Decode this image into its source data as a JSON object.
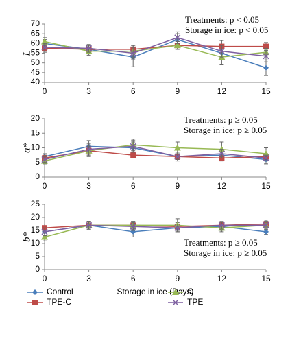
{
  "chart_data": [
    {
      "type": "line",
      "ylabel": "L",
      "x": [
        0,
        3,
        6,
        9,
        12,
        15
      ],
      "xlim": [
        0,
        15
      ],
      "xticks": [
        0,
        3,
        6,
        9,
        12,
        15
      ],
      "ylim": [
        40,
        70
      ],
      "yticks": [
        40,
        45,
        50,
        55,
        60,
        65,
        70
      ],
      "annotations": [
        "Treatments: p < 0.05",
        "Storage in ice: p < 0.05"
      ],
      "series": [
        {
          "name": "Control",
          "color": "#4a7ebb",
          "marker": "diamond",
          "values": [
            60,
            57,
            53,
            62,
            55,
            47.5
          ],
          "errors": [
            2,
            2,
            5,
            3,
            3,
            4
          ]
        },
        {
          "name": "TPE-C",
          "color": "#be4b48",
          "marker": "square",
          "values": [
            57.5,
            57,
            57,
            59,
            58.5,
            58.5
          ],
          "errors": [
            2,
            2,
            2,
            2,
            3,
            2
          ]
        },
        {
          "name": "C",
          "color": "#98b954",
          "marker": "triangle",
          "values": [
            61,
            56,
            56,
            59,
            53,
            55.5
          ],
          "errors": [
            2,
            2,
            3,
            2,
            4,
            2
          ]
        },
        {
          "name": "TPE",
          "color": "#7d5fa0",
          "marker": "x",
          "values": [
            58,
            57.5,
            55,
            63,
            56,
            53.5
          ],
          "errors": [
            2,
            2,
            3,
            3,
            3,
            3
          ]
        }
      ]
    },
    {
      "type": "line",
      "ylabel": "a*",
      "x": [
        0,
        3,
        6,
        9,
        12,
        15
      ],
      "xlim": [
        0,
        15
      ],
      "xticks": [
        0,
        3,
        6,
        9,
        12,
        15
      ],
      "ylim": [
        0,
        20
      ],
      "yticks": [
        0,
        5,
        10,
        15,
        20
      ],
      "annotations": [
        "Treatments: p ≥ 0.05",
        "Storage in ice: p ≥ 0.05"
      ],
      "series": [
        {
          "name": "Control",
          "color": "#4a7ebb",
          "marker": "diamond",
          "values": [
            7,
            10.5,
            10,
            7,
            7.5,
            6
          ],
          "errors": [
            1,
            2,
            2,
            1,
            1.5,
            1.5
          ]
        },
        {
          "name": "TPE-C",
          "color": "#be4b48",
          "marker": "square",
          "values": [
            6.5,
            9,
            7.5,
            7,
            6.5,
            7
          ],
          "errors": [
            1,
            1.5,
            1,
            1,
            1,
            1
          ]
        },
        {
          "name": "C",
          "color": "#98b954",
          "marker": "triangle",
          "values": [
            5.5,
            9,
            11,
            10,
            9.5,
            8
          ],
          "errors": [
            1,
            2,
            2,
            2,
            2.5,
            2
          ]
        },
        {
          "name": "TPE",
          "color": "#7d5fa0",
          "marker": "x",
          "values": [
            6,
            9.5,
            10.5,
            7,
            8,
            6.5
          ],
          "errors": [
            1,
            2,
            2,
            1.5,
            1.5,
            1
          ]
        }
      ]
    },
    {
      "type": "line",
      "ylabel": "b*",
      "xlabel": "Storage in ice (Days)",
      "x": [
        0,
        3,
        6,
        9,
        12,
        15
      ],
      "xlim": [
        0,
        15
      ],
      "xticks": [
        0,
        3,
        6,
        9,
        12,
        15
      ],
      "ylim": [
        0,
        25
      ],
      "yticks": [
        0,
        5,
        10,
        15,
        20,
        25
      ],
      "annotations": [
        "Treatments: p ≥ 0.05",
        "Storage in ice: p ≥ 0.05"
      ],
      "series": [
        {
          "name": "Control",
          "color": "#4a7ebb",
          "marker": "diamond",
          "values": [
            14.5,
            17,
            14.5,
            16,
            16.5,
            14.5
          ],
          "errors": [
            1.5,
            1.5,
            2,
            1.5,
            1.5,
            1
          ]
        },
        {
          "name": "TPE-C",
          "color": "#be4b48",
          "marker": "square",
          "values": [
            16,
            17,
            17,
            16.5,
            17,
            17.5
          ],
          "errors": [
            1.5,
            1.5,
            1.5,
            1.5,
            1,
            1.5
          ]
        },
        {
          "name": "C",
          "color": "#98b954",
          "marker": "triangle",
          "values": [
            12.5,
            17,
            17,
            17,
            16,
            17
          ],
          "errors": [
            1.5,
            1.5,
            1.5,
            2.5,
            1.5,
            1.5
          ]
        },
        {
          "name": "TPE",
          "color": "#7d5fa0",
          "marker": "x",
          "values": [
            14.5,
            17,
            16.5,
            16,
            17,
            17
          ],
          "errors": [
            1.5,
            1.5,
            1.5,
            1.5,
            1.5,
            1.5
          ]
        }
      ]
    }
  ]
}
